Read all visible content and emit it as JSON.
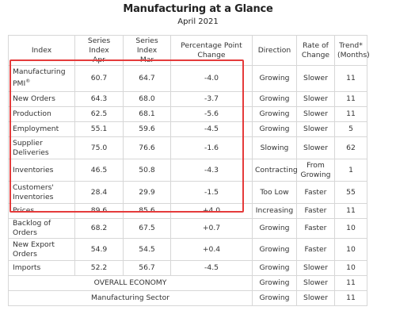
{
  "title": "Manufacturing at a Glance",
  "subtitle": "April 2021",
  "headers": [
    [
      "Index"
    ],
    [
      "Series Index",
      "Apr"
    ],
    [
      "Series Index",
      "Mar"
    ],
    [
      "Percentage Point",
      "Change"
    ],
    [
      "Direction"
    ],
    [
      "Rate of",
      "Change"
    ],
    [
      "Trend*",
      "(Months)"
    ]
  ],
  "rows": [
    {
      "index": "Manufacturing PMI",
      "mark": "®",
      "apr": "60.7",
      "mar": "64.7",
      "change": "-4.0",
      "direction": "Growing",
      "rate": "Slower",
      "trend": "11"
    },
    {
      "index": "New Orders",
      "apr": "64.3",
      "mar": "68.0",
      "change": "-3.7",
      "direction": "Growing",
      "rate": "Slower",
      "trend": "11"
    },
    {
      "index": "Production",
      "apr": "62.5",
      "mar": "68.1",
      "change": "-5.6",
      "direction": "Growing",
      "rate": "Slower",
      "trend": "11"
    },
    {
      "index": "Employment",
      "apr": "55.1",
      "mar": "59.6",
      "change": "-4.5",
      "direction": "Growing",
      "rate": "Slower",
      "trend": "5"
    },
    {
      "index": "Supplier Deliveries",
      "apr": "75.0",
      "mar": "76.6",
      "change": "-1.6",
      "direction": "Slowing",
      "rate": "Slower",
      "trend": "62"
    },
    {
      "index": "Inventories",
      "apr": "46.5",
      "mar": "50.8",
      "change": "-4.3",
      "direction": "Contracting",
      "rate": "From Growing",
      "trend": "1"
    },
    {
      "index": "Customers' Inventories",
      "apr": "28.4",
      "mar": "29.9",
      "change": "-1.5",
      "direction": "Too Low",
      "rate": "Faster",
      "trend": "55"
    },
    {
      "index": "Prices",
      "apr": "89.6",
      "mar": "85.6",
      "change": "+4.0",
      "direction": "Increasing",
      "rate": "Faster",
      "trend": "11"
    },
    {
      "index": "Backlog of Orders",
      "apr": "68.2",
      "mar": "67.5",
      "change": "+0.7",
      "direction": "Growing",
      "rate": "Faster",
      "trend": "10"
    },
    {
      "index": "New Export Orders",
      "apr": "54.9",
      "mar": "54.5",
      "change": "+0.4",
      "direction": "Growing",
      "rate": "Faster",
      "trend": "10"
    },
    {
      "index": "Imports",
      "apr": "52.2",
      "mar": "56.7",
      "change": "-4.5",
      "direction": "Growing",
      "rate": "Slower",
      "trend": "10"
    }
  ],
  "summary": [
    {
      "label": "OVERALL ECONOMY",
      "direction": "Growing",
      "rate": "Slower",
      "trend": "11"
    },
    {
      "label": "Manufacturing Sector",
      "direction": "Growing",
      "rate": "Slower",
      "trend": "11"
    }
  ],
  "highlight_color": "#e53b3b"
}
